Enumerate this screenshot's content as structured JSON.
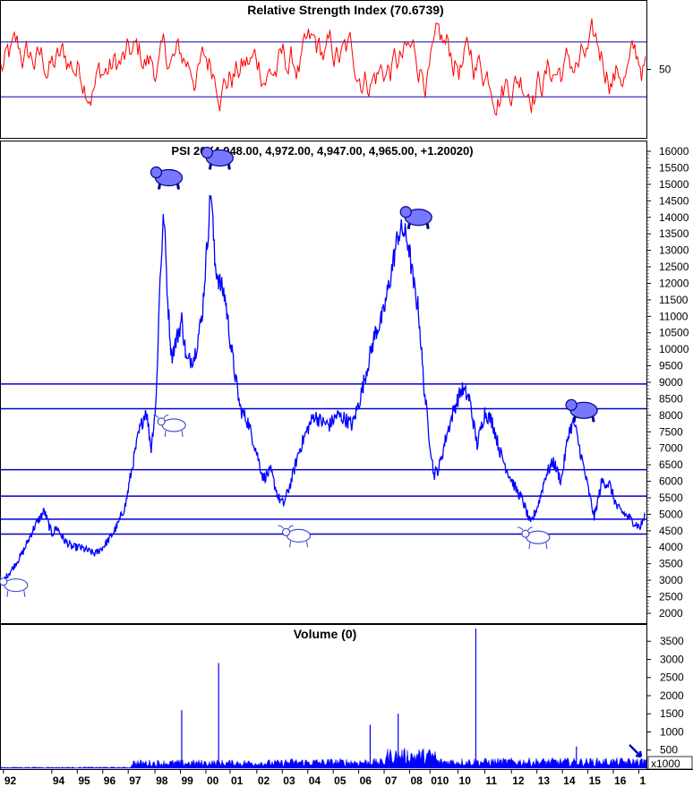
{
  "chart_data": [
    {
      "type": "line",
      "title": "Relative Strength Index (70.6739)",
      "y_ticks": [
        "50"
      ],
      "reference_lines": [
        30,
        70
      ],
      "ylim": [
        0,
        100
      ],
      "color": "#ff0000",
      "grid": false
    },
    {
      "type": "line",
      "title": "PSI 20 (4,948.00, 4,972.00, 4,947.00, 4,965.00, +1.20020)",
      "x_ticks": [
        "92",
        "94",
        "95",
        "96",
        "97",
        "98",
        "99",
        "00",
        "01",
        "02",
        "03",
        "04",
        "05",
        "06",
        "07",
        "08",
        "010",
        "10",
        "11",
        "12",
        "13",
        "14",
        "15",
        "16",
        "1"
      ],
      "y_ticks": [
        "2000",
        "2500",
        "3000",
        "3500",
        "4000",
        "4500",
        "5000",
        "5500",
        "6000",
        "6500",
        "7000",
        "7500",
        "8000",
        "8500",
        "9000",
        "9500",
        "10000",
        "10500",
        "11000",
        "11500",
        "12000",
        "12500",
        "13000",
        "13500",
        "14000",
        "14500",
        "15000",
        "15500",
        "16000"
      ],
      "ylim": [
        1700,
        16300
      ],
      "horizontal_levels": [
        8950,
        8200,
        6350,
        5550,
        4850,
        4400
      ],
      "series": [
        {
          "x": [
            1992.0,
            1992.4,
            1992.8,
            1993.2,
            1993.6,
            1993.9,
            1994.1,
            1994.4,
            1994.7,
            1995.0,
            1995.3,
            1995.6,
            1995.9,
            1996.2,
            1996.5,
            1996.8,
            1997.0,
            1997.3,
            1997.6,
            1997.8,
            1998.0,
            1998.15,
            1998.3,
            1998.45,
            1998.6,
            1998.8,
            1999.0,
            1999.2,
            1999.5,
            1999.8,
            2000.0,
            2000.15,
            2000.3,
            2000.5,
            2000.7,
            2000.9,
            2001.1,
            2001.3,
            2001.6,
            2001.9,
            2002.2,
            2002.5,
            2002.8,
            2003.0,
            2003.3,
            2003.6,
            2003.9,
            2004.2,
            2004.5,
            2004.8,
            2005.1,
            2005.4,
            2005.7,
            2006.0,
            2006.3,
            2006.6,
            2006.9,
            2007.2,
            2007.5,
            2007.7,
            2007.9,
            2008.1,
            2008.3,
            2008.5,
            2008.7,
            2008.9,
            2009.1,
            2009.4,
            2009.7,
            2010.0,
            2010.3,
            2010.6,
            2010.9,
            2011.2,
            2011.5,
            2011.8,
            2012.1,
            2012.4,
            2012.7,
            2013.0,
            2013.3,
            2013.6,
            2013.9,
            2014.2,
            2014.4,
            2014.6,
            2014.9,
            2015.2,
            2015.5,
            2015.8,
            2016.1,
            2016.4,
            2016.7,
            2017.0,
            2017.2
          ],
          "y": [
            3000,
            3400,
            3900,
            4600,
            5100,
            4400,
            4600,
            4200,
            4000,
            4000,
            3900,
            3800,
            4000,
            4300,
            4700,
            5300,
            6200,
            7400,
            8200,
            7000,
            8500,
            12200,
            14100,
            11500,
            9800,
            10300,
            10900,
            9600,
            9800,
            11000,
            13200,
            14900,
            12600,
            12000,
            11600,
            10300,
            9200,
            8200,
            7800,
            7000,
            6100,
            6300,
            5500,
            5300,
            6000,
            6900,
            7500,
            8000,
            7800,
            7700,
            8000,
            7900,
            7700,
            8500,
            9500,
            10500,
            11000,
            12200,
            13500,
            13600,
            13200,
            12000,
            11200,
            9000,
            7500,
            6200,
            6400,
            7400,
            8200,
            8800,
            8500,
            7100,
            8100,
            7800,
            6900,
            6300,
            5800,
            5400,
            4700,
            5300,
            6200,
            6600,
            6000,
            7500,
            7800,
            7100,
            6000,
            4900,
            6000,
            5900,
            5200,
            5000,
            4800,
            4600,
            4965
          ]
        }
      ],
      "annotations": [
        {
          "kind": "bull-icon",
          "x": 1992.0,
          "y": 2850
        },
        {
          "kind": "bear-icon",
          "x": 1998.0,
          "y": 15200
        },
        {
          "kind": "bull-icon",
          "x": 1998.2,
          "y": 7700
        },
        {
          "kind": "bear-icon",
          "x": 2000.0,
          "y": 15800
        },
        {
          "kind": "bull-icon",
          "x": 2003.1,
          "y": 4350
        },
        {
          "kind": "bear-icon",
          "x": 2007.8,
          "y": 14000
        },
        {
          "kind": "bull-icon",
          "x": 2012.5,
          "y": 4300
        },
        {
          "kind": "bear-icon",
          "x": 2014.3,
          "y": 8150
        }
      ],
      "color": "#0000ff",
      "grid": false
    },
    {
      "type": "bar",
      "title": "Volume (0)",
      "y_ticks": [
        "500",
        "1000",
        "1500",
        "2000",
        "2500",
        "3000",
        "3500"
      ],
      "y_unit_label": "x1000",
      "ylim": [
        0,
        3950
      ],
      "color": "#0000ff",
      "spikes": [
        {
          "x": 1999.0,
          "value": 1600
        },
        {
          "x": 2000.45,
          "value": 2900
        },
        {
          "x": 2006.4,
          "value": 1200
        },
        {
          "x": 2007.5,
          "value": 1500
        },
        {
          "x": 2010.55,
          "value": 3850
        },
        {
          "x": 2014.5,
          "value": 600
        }
      ]
    }
  ]
}
